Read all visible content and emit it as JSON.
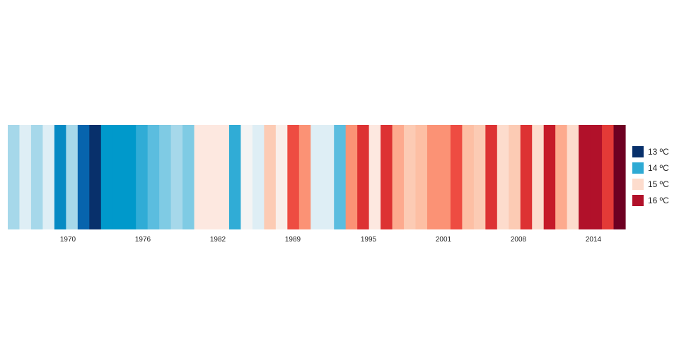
{
  "chart_data": {
    "type": "heatmap",
    "title": "",
    "xlabel": "",
    "ylabel": "",
    "x_tick_labels": [
      "1970",
      "1976",
      "1982",
      "1989",
      "1995",
      "2001",
      "2008",
      "2014"
    ],
    "legend": {
      "placement": "right",
      "entries": [
        {
          "label": "13 ºC",
          "color": "#08306b"
        },
        {
          "label": "14 ºC",
          "color": "#2eaad4"
        },
        {
          "label": "15 ºC",
          "color": "#fddccd"
        },
        {
          "label": "16 ºC",
          "color": "#b1112a"
        }
      ]
    },
    "stripes": [
      {
        "color": "#a6d8ea"
      },
      {
        "color": "#deeef5"
      },
      {
        "color": "#a6d8ea"
      },
      {
        "color": "#deeef5"
      },
      {
        "color": "#068ac4"
      },
      {
        "color": "#a6d8ea"
      },
      {
        "color": "#0764ad"
      },
      {
        "color": "#08306b"
      },
      {
        "color": "#0099cb"
      },
      {
        "color": "#0099cb"
      },
      {
        "color": "#0099cb"
      },
      {
        "color": "#30acd6"
      },
      {
        "color": "#5bbddf"
      },
      {
        "color": "#7fcbe4"
      },
      {
        "color": "#a6d8ea"
      },
      {
        "color": "#7fcbe4"
      },
      {
        "color": "#fde8e0"
      },
      {
        "color": "#fde8e0"
      },
      {
        "color": "#fde8e0"
      },
      {
        "color": "#30acd6"
      },
      {
        "color": "#f4f4f4"
      },
      {
        "color": "#deeef5"
      },
      {
        "color": "#fccbb4"
      },
      {
        "color": "#f9efea"
      },
      {
        "color": "#ee4c42"
      },
      {
        "color": "#fb9275"
      },
      {
        "color": "#deeef5"
      },
      {
        "color": "#deeef5"
      },
      {
        "color": "#5bbddf"
      },
      {
        "color": "#fb9275"
      },
      {
        "color": "#dd3233"
      },
      {
        "color": "#fde8e0"
      },
      {
        "color": "#dd3233"
      },
      {
        "color": "#fdaa8e"
      },
      {
        "color": "#fccbb4"
      },
      {
        "color": "#fdbfa4"
      },
      {
        "color": "#fb9275"
      },
      {
        "color": "#fb9275"
      },
      {
        "color": "#ee4c42"
      },
      {
        "color": "#fdbfa4"
      },
      {
        "color": "#fccbb4"
      },
      {
        "color": "#dd3233"
      },
      {
        "color": "#fddccd"
      },
      {
        "color": "#fccbb4"
      },
      {
        "color": "#dd3233"
      },
      {
        "color": "#fddccd"
      },
      {
        "color": "#c61928"
      },
      {
        "color": "#fdaa8e"
      },
      {
        "color": "#fddccd"
      },
      {
        "color": "#b1112a"
      },
      {
        "color": "#b1112a"
      },
      {
        "color": "#e33a37"
      },
      {
        "color": "#6e0022"
      }
    ]
  }
}
